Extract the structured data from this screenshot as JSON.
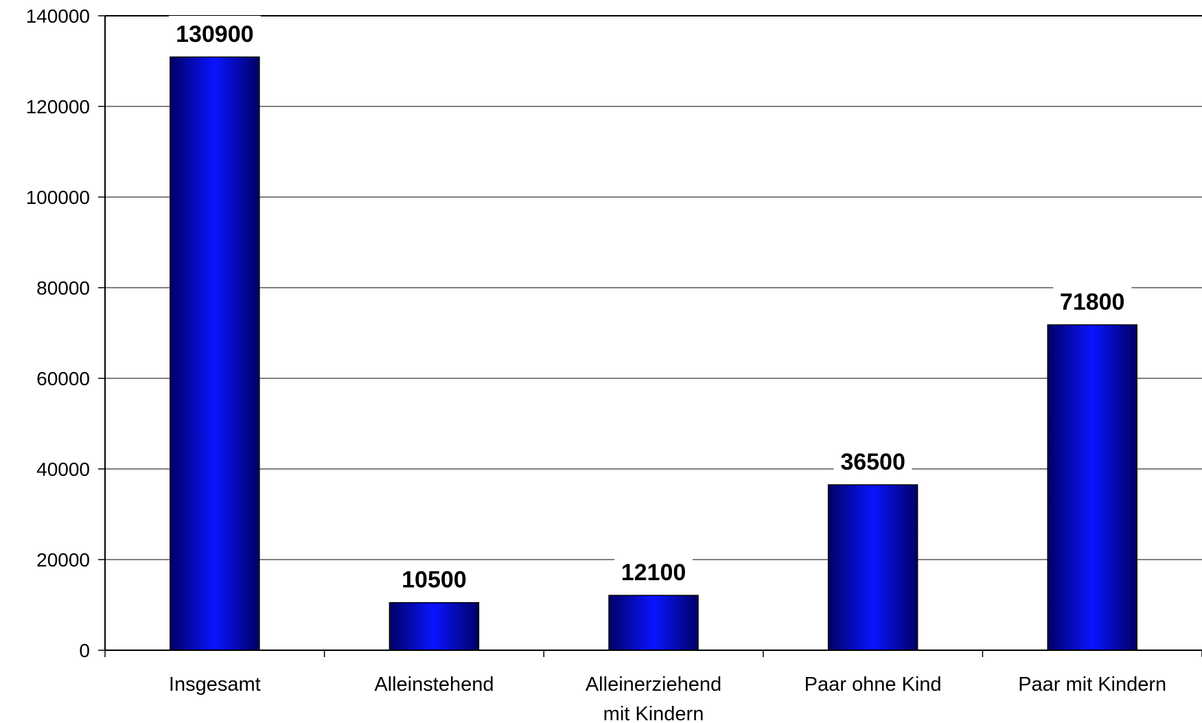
{
  "chart_data": {
    "type": "bar",
    "categories": [
      [
        "Insgesamt"
      ],
      [
        "Alleinstehend"
      ],
      [
        "Alleinerziehend",
        "mit Kindern"
      ],
      [
        "Paar ohne Kind"
      ],
      [
        "Paar mit Kindern"
      ]
    ],
    "values": [
      130900,
      10500,
      12100,
      36500,
      71800
    ],
    "data_labels": [
      "130900",
      "10500",
      "12100",
      "36500",
      "71800"
    ],
    "yticks": [
      "0",
      "20000",
      "40000",
      "60000",
      "80000",
      "100000",
      "120000",
      "140000"
    ],
    "ylim": [
      0,
      140000
    ],
    "ystep": 20000,
    "grid": true,
    "colors": {
      "bar_dark": "#000066",
      "bar_light": "#0a14ff",
      "axis": "#000000",
      "grid": "#000000"
    }
  }
}
